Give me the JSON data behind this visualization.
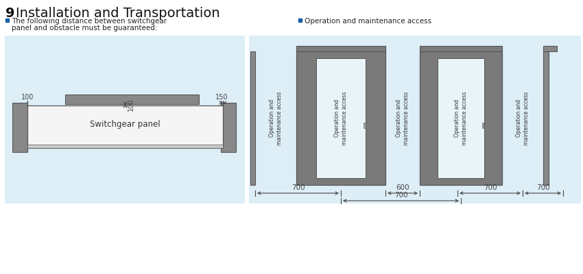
{
  "title_bold": "9 ",
  "title_normal": "Installation and Transportation",
  "bg_blue": "#ddeef7",
  "gray": "#888888",
  "dark_edge": "#555555",
  "white": "#ffffff",
  "door_white": "#f0f0f0",
  "text_dark": "#333333",
  "bullet_blue": "#1a5fa8",
  "dim_color": "#444444",
  "bullet1_l1": "The following distance between switchgear",
  "bullet1_l2": "panel and obstacle must be guaranteed:",
  "bullet2": "Operation and maintenance access",
  "switchgear_label": "Switchgear panel",
  "access_label": "Operation and\nmaintenance access",
  "d100L": "100",
  "d100C": "100",
  "d150R": "150",
  "d700_1": "700",
  "d600": "600",
  "d700_2": "700",
  "d700_3": "700",
  "d700_4": "700"
}
